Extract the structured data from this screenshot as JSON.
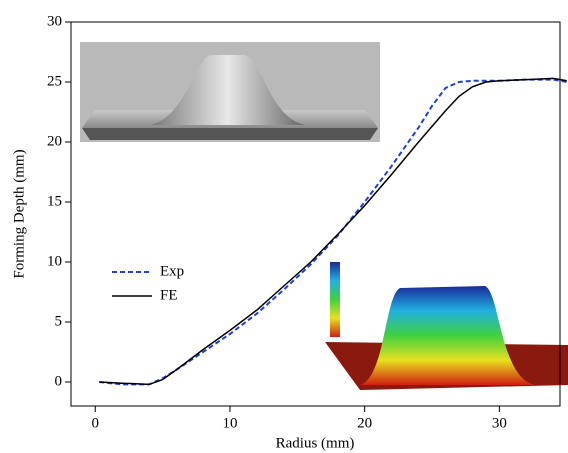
{
  "chart_data": {
    "type": "line",
    "x_label": "Radius (mm)",
    "y_label": "Forming Depth (mm)",
    "x": [
      0.3,
      2,
      4,
      5,
      6,
      8,
      10,
      12,
      14,
      16,
      18,
      20,
      22,
      24,
      25,
      26,
      27,
      28,
      29,
      30,
      32,
      34,
      35
    ],
    "series": [
      {
        "name": "Exp",
        "color": "#1f3fd8",
        "dash": true,
        "values": [
          0,
          -0.2,
          -0.2,
          0.3,
          1,
          2.5,
          4,
          5.7,
          7.7,
          9.8,
          12.2,
          15,
          18,
          21.2,
          23,
          24.5,
          25,
          25.1,
          25.1,
          25.1,
          25.2,
          25.2,
          25
        ]
      },
      {
        "name": "FE",
        "color": "#000000",
        "dash": false,
        "values": [
          0,
          -0.1,
          -0.2,
          0.2,
          1,
          2.7,
          4.3,
          6,
          8,
          10,
          12.3,
          14.7,
          17.3,
          20,
          21.3,
          22.6,
          23.8,
          24.6,
          25,
          25.1,
          25.2,
          25.3,
          25.1
        ]
      }
    ],
    "xlim": [
      -1.8,
      34.5
    ],
    "xticks": [
      0,
      10,
      20,
      30
    ],
    "ylim": [
      -2,
      30
    ],
    "yticks": [
      0,
      5,
      10,
      15,
      20,
      25,
      30
    ],
    "legend": "left"
  }
}
